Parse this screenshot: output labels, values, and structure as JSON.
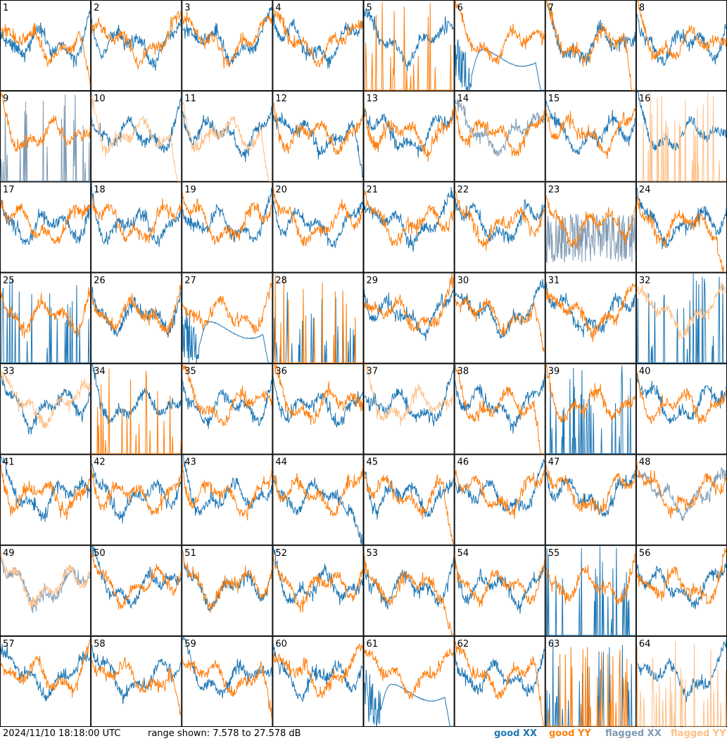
{
  "footer": {
    "timestamp": "2024/11/10 18:18:00 UTC",
    "range": "range shown: 7.578 to 27.578 dB"
  },
  "legend": [
    {
      "label": "good XX",
      "color": "#1f77b4"
    },
    {
      "label": "good YY",
      "color": "#ff7f0e"
    },
    {
      "label": "flagged XX",
      "color": "#7f9ab3"
    },
    {
      "label": "flagged YY",
      "color": "#ffbf87"
    }
  ],
  "chart_data": {
    "type": "line",
    "layout": "8x8 small multiples",
    "ylim": [
      7.578,
      27.578
    ],
    "yunit": "dB",
    "panels": [
      {
        "id": 1,
        "xx": "good",
        "yy": "good",
        "xx_shape": "wavy",
        "yy_shape": "rolloff"
      },
      {
        "id": 2,
        "xx": "good",
        "yy": "good",
        "xx_shape": "wavy",
        "yy_shape": "wavy"
      },
      {
        "id": 3,
        "xx": "good",
        "yy": "good",
        "xx_shape": "wavy",
        "yy_shape": "wavy"
      },
      {
        "id": 4,
        "xx": "good",
        "yy": "good",
        "xx_shape": "wavy",
        "yy_shape": "wavy"
      },
      {
        "id": 5,
        "xx": "good",
        "yy": "good",
        "xx_shape": "wavy",
        "yy_shape": "spikes"
      },
      {
        "id": 6,
        "xx": "good",
        "yy": "good",
        "xx_shape": "smooth-rolloff",
        "yy_shape": "wavy"
      },
      {
        "id": 7,
        "xx": "good",
        "yy": "good",
        "xx_shape": "wavy",
        "yy_shape": "rolloff"
      },
      {
        "id": 8,
        "xx": "good",
        "yy": "good",
        "xx_shape": "wavy",
        "yy_shape": "wavy"
      },
      {
        "id": 9,
        "xx": "flagged",
        "yy": "good",
        "xx_shape": "spikes",
        "yy_shape": "wavy"
      },
      {
        "id": 10,
        "xx": "good",
        "yy": "flagged",
        "xx_shape": "wavy",
        "yy_shape": "rolloff"
      },
      {
        "id": 11,
        "xx": "good",
        "yy": "flagged",
        "xx_shape": "wavy",
        "yy_shape": "rolloff"
      },
      {
        "id": 12,
        "xx": "good",
        "yy": "good",
        "xx_shape": "rolloff",
        "yy_shape": "wavy"
      },
      {
        "id": 13,
        "xx": "good",
        "yy": "good",
        "xx_shape": "wavy",
        "yy_shape": "wavy"
      },
      {
        "id": 14,
        "xx": "flagged",
        "yy": "good",
        "xx_shape": "wavy",
        "yy_shape": "wavy"
      },
      {
        "id": 15,
        "xx": "good",
        "yy": "good",
        "xx_shape": "wavy",
        "yy_shape": "wavy"
      },
      {
        "id": 16,
        "xx": "good",
        "yy": "flagged",
        "xx_shape": "wavy",
        "yy_shape": "spikes"
      },
      {
        "id": 17,
        "xx": "good",
        "yy": "good",
        "xx_shape": "wavy",
        "yy_shape": "wavy"
      },
      {
        "id": 18,
        "xx": "good",
        "yy": "good",
        "xx_shape": "wavy",
        "yy_shape": "wavy"
      },
      {
        "id": 19,
        "xx": "good",
        "yy": "good",
        "xx_shape": "wavy",
        "yy_shape": "wavy"
      },
      {
        "id": 20,
        "xx": "good",
        "yy": "good",
        "xx_shape": "wavy",
        "yy_shape": "wavy"
      },
      {
        "id": 21,
        "xx": "good",
        "yy": "good",
        "xx_shape": "wavy",
        "yy_shape": "wavy"
      },
      {
        "id": 22,
        "xx": "good",
        "yy": "good",
        "xx_shape": "wavy",
        "yy_shape": "wavy"
      },
      {
        "id": 23,
        "xx": "flagged",
        "yy": "good",
        "xx_shape": "noisy",
        "yy_shape": "wavy"
      },
      {
        "id": 24,
        "xx": "good",
        "yy": "good",
        "xx_shape": "wavy",
        "yy_shape": "rolloff"
      },
      {
        "id": 25,
        "xx": "good",
        "yy": "good",
        "xx_shape": "spikes",
        "yy_shape": "wavy"
      },
      {
        "id": 26,
        "xx": "good",
        "yy": "good",
        "xx_shape": "wavy",
        "yy_shape": "wavy"
      },
      {
        "id": 27,
        "xx": "good",
        "yy": "good",
        "xx_shape": "smooth-rolloff",
        "yy_shape": "wavy"
      },
      {
        "id": 28,
        "xx": "good",
        "yy": "good",
        "xx_shape": "spikes",
        "yy_shape": "spikes"
      },
      {
        "id": 29,
        "xx": "good",
        "yy": "good",
        "xx_shape": "wavy",
        "yy_shape": "wavy"
      },
      {
        "id": 30,
        "xx": "good",
        "yy": "good",
        "xx_shape": "wavy",
        "yy_shape": "rolloff"
      },
      {
        "id": 31,
        "xx": "good",
        "yy": "good",
        "xx_shape": "wavy",
        "yy_shape": "wavy"
      },
      {
        "id": 32,
        "xx": "good",
        "yy": "flagged",
        "xx_shape": "spikes",
        "yy_shape": "wavy"
      },
      {
        "id": 33,
        "xx": "good",
        "yy": "flagged",
        "xx_shape": "wavy",
        "yy_shape": "wavy"
      },
      {
        "id": 34,
        "xx": "good",
        "yy": "good",
        "xx_shape": "wavy",
        "yy_shape": "spikes"
      },
      {
        "id": 35,
        "xx": "good",
        "yy": "good",
        "xx_shape": "wavy",
        "yy_shape": "wavy"
      },
      {
        "id": 36,
        "xx": "good",
        "yy": "good",
        "xx_shape": "wavy",
        "yy_shape": "wavy"
      },
      {
        "id": 37,
        "xx": "good",
        "yy": "flagged",
        "xx_shape": "wavy",
        "yy_shape": "wavy"
      },
      {
        "id": 38,
        "xx": "good",
        "yy": "good",
        "xx_shape": "wavy",
        "yy_shape": "rolloff"
      },
      {
        "id": 39,
        "xx": "good",
        "yy": "good",
        "xx_shape": "spikes",
        "yy_shape": "wavy"
      },
      {
        "id": 40,
        "xx": "good",
        "yy": "good",
        "xx_shape": "wavy",
        "yy_shape": "wavy"
      },
      {
        "id": 41,
        "xx": "good",
        "yy": "good",
        "xx_shape": "wavy",
        "yy_shape": "wavy"
      },
      {
        "id": 42,
        "xx": "good",
        "yy": "good",
        "xx_shape": "wavy",
        "yy_shape": "wavy"
      },
      {
        "id": 43,
        "xx": "good",
        "yy": "good",
        "xx_shape": "wavy",
        "yy_shape": "wavy"
      },
      {
        "id": 44,
        "xx": "good",
        "yy": "good",
        "xx_shape": "rolloff",
        "yy_shape": "wavy"
      },
      {
        "id": 45,
        "xx": "good",
        "yy": "good",
        "xx_shape": "wavy",
        "yy_shape": "rolloff"
      },
      {
        "id": 46,
        "xx": "good",
        "yy": "good",
        "xx_shape": "wavy",
        "yy_shape": "wavy"
      },
      {
        "id": 47,
        "xx": "good",
        "yy": "good",
        "xx_shape": "wavy",
        "yy_shape": "wavy"
      },
      {
        "id": 48,
        "xx": "flagged",
        "yy": "good",
        "xx_shape": "wavy",
        "yy_shape": "wavy"
      },
      {
        "id": 49,
        "xx": "flagged",
        "yy": "flagged",
        "xx_shape": "wavy",
        "yy_shape": "wavy"
      },
      {
        "id": 50,
        "xx": "good",
        "yy": "good",
        "xx_shape": "wavy",
        "yy_shape": "wavy"
      },
      {
        "id": 51,
        "xx": "good",
        "yy": "good",
        "xx_shape": "wavy",
        "yy_shape": "wavy"
      },
      {
        "id": 52,
        "xx": "good",
        "yy": "good",
        "xx_shape": "wavy",
        "yy_shape": "wavy"
      },
      {
        "id": 53,
        "xx": "good",
        "yy": "good",
        "xx_shape": "wavy",
        "yy_shape": "rolloff"
      },
      {
        "id": 54,
        "xx": "good",
        "yy": "good",
        "xx_shape": "wavy",
        "yy_shape": "wavy"
      },
      {
        "id": 55,
        "xx": "good",
        "yy": "good",
        "xx_shape": "spikes",
        "yy_shape": "wavy"
      },
      {
        "id": 56,
        "xx": "good",
        "yy": "good",
        "xx_shape": "wavy",
        "yy_shape": "wavy"
      },
      {
        "id": 57,
        "xx": "good",
        "yy": "good",
        "xx_shape": "wavy",
        "yy_shape": "wavy"
      },
      {
        "id": 58,
        "xx": "good",
        "yy": "good",
        "xx_shape": "wavy",
        "yy_shape": "rolloff"
      },
      {
        "id": 59,
        "xx": "good",
        "yy": "good",
        "xx_shape": "wavy",
        "yy_shape": "rolloff"
      },
      {
        "id": 60,
        "xx": "good",
        "yy": "good",
        "xx_shape": "wavy",
        "yy_shape": "wavy"
      },
      {
        "id": 61,
        "xx": "good",
        "yy": "good",
        "xx_shape": "smooth-rolloff",
        "yy_shape": "wavy"
      },
      {
        "id": 62,
        "xx": "good",
        "yy": "good",
        "xx_shape": "wavy",
        "yy_shape": "rolloff"
      },
      {
        "id": 63,
        "xx": "good",
        "yy": "good",
        "xx_shape": "spikes",
        "yy_shape": "spikes"
      },
      {
        "id": 64,
        "xx": "good",
        "yy": "flagged",
        "xx_shape": "wavy",
        "yy_shape": "spikes"
      }
    ]
  }
}
